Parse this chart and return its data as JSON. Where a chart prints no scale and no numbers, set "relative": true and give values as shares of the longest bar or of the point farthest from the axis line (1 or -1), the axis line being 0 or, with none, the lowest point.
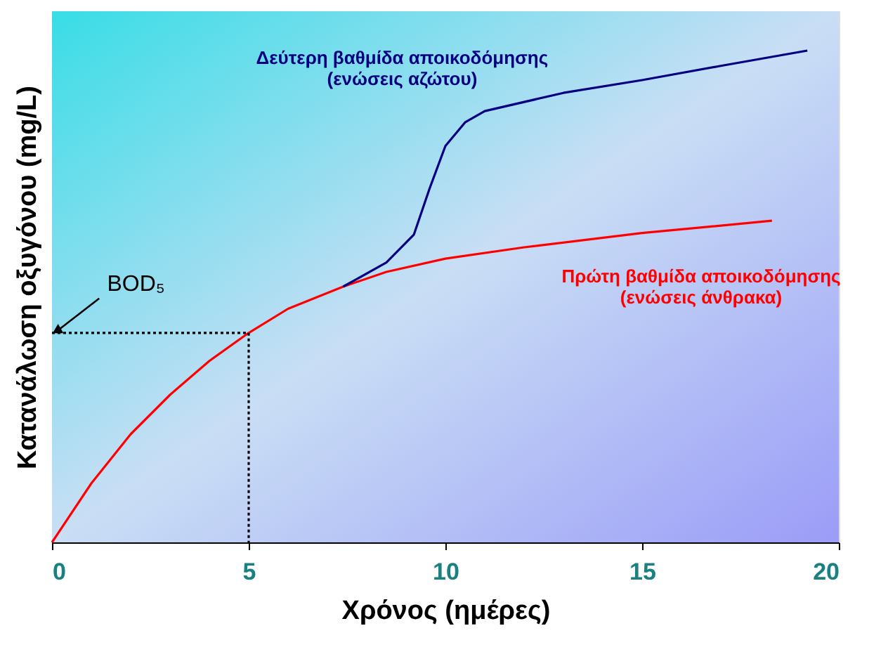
{
  "chart_data": {
    "type": "line",
    "relative": true,
    "xlabel": "Χρόνος (ημέρες)",
    "ylabel": "Κατανάλωση οξυγόνου (mg/L)",
    "xlim": [
      0,
      20
    ],
    "xticks": [
      0,
      5,
      10,
      15,
      20
    ],
    "tick_labels": "x",
    "series": [
      {
        "name": "Πρώτη βαθμίδα αποικοδόμησης\n(ενώσεις άνθρακα)",
        "color": "#ff0000",
        "line_style": "solid",
        "x": [
          0,
          1,
          2,
          3,
          4,
          5,
          6,
          7.4,
          8.5,
          10,
          12,
          15,
          18.3
        ],
        "values": [
          0,
          0.12,
          0.22,
          0.3,
          0.369,
          0.426,
          0.475,
          0.52,
          0.55,
          0.577,
          0.6,
          0.629,
          0.654
        ]
      },
      {
        "name": "Δεύτερη βαθμίδα αποικοδόμησης\n(ενώσεις αζώτου)",
        "color": "#000080",
        "line_style": "solid",
        "x": [
          7.4,
          8.5,
          9.2,
          9.6,
          10,
          10.5,
          11,
          13,
          15,
          17,
          19.2
        ],
        "values": [
          0.52,
          0.569,
          0.626,
          0.72,
          0.806,
          0.854,
          0.877,
          0.914,
          0.94,
          0.969,
          1
        ]
      },
      {
        "color": "#000000",
        "line_style": "dotted",
        "x": [
          0,
          5,
          5
        ],
        "values": [
          0.426,
          0.426,
          0
        ]
      }
    ],
    "annotations": [
      {
        "text": "BOD₅",
        "x": 0,
        "y": 0.426
      }
    ]
  }
}
